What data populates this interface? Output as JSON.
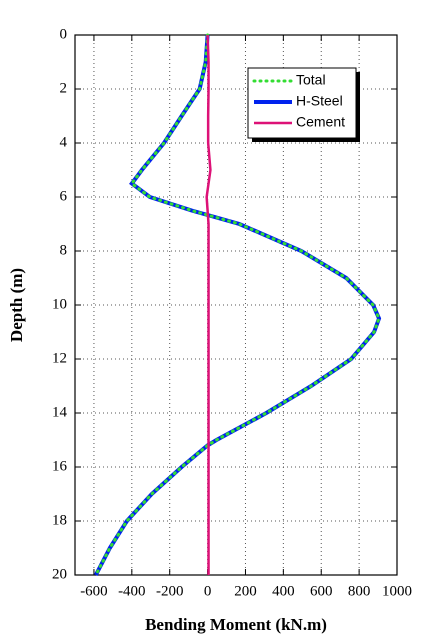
{
  "chart_data": {
    "type": "line",
    "x_label": "Bending Moment (kN.m)",
    "y_label": "Depth (m)",
    "y": [
      0,
      1,
      2,
      3,
      4,
      5,
      5.5,
      6,
      6.5,
      7,
      8,
      9,
      10,
      10.5,
      11,
      12,
      13,
      14,
      15,
      15.2,
      16,
      17,
      18,
      19,
      20
    ],
    "series": [
      {
        "name": "Total",
        "color": "#33dd33",
        "dash": "dotted",
        "values": [
          0,
          -10,
          -42,
          -137,
          -230,
          -347,
          -400,
          -305,
          -84,
          168,
          495,
          732,
          874,
          905,
          879,
          758,
          547,
          310,
          47,
          0,
          -137,
          -295,
          -426,
          -516,
          -590
        ]
      },
      {
        "name": "H-Steel",
        "color": "#0022ee",
        "dash": "solid",
        "values": [
          0,
          -10,
          -42,
          -137,
          -230,
          -347,
          -400,
          -305,
          -84,
          168,
          495,
          732,
          874,
          905,
          879,
          758,
          547,
          310,
          47,
          0,
          -137,
          -295,
          -426,
          -516,
          -590
        ]
      },
      {
        "name": "Cement",
        "color": "#dd1177",
        "dash": "solid",
        "values": [
          0,
          5,
          5,
          3,
          3,
          15,
          5,
          -5,
          0,
          5,
          5,
          5,
          5,
          5,
          5,
          5,
          5,
          5,
          5,
          5,
          5,
          5,
          5,
          5,
          5
        ]
      }
    ],
    "xlim": [
      -700,
      1000
    ],
    "xticks": [
      -600,
      -400,
      -200,
      0,
      200,
      400,
      600,
      800,
      1000
    ],
    "ylim": [
      0,
      20
    ],
    "yticks": [
      0,
      2,
      4,
      6,
      8,
      10,
      12,
      14,
      16,
      18,
      20
    ],
    "y_inverted": true,
    "grid": true,
    "legend": "upper right"
  }
}
